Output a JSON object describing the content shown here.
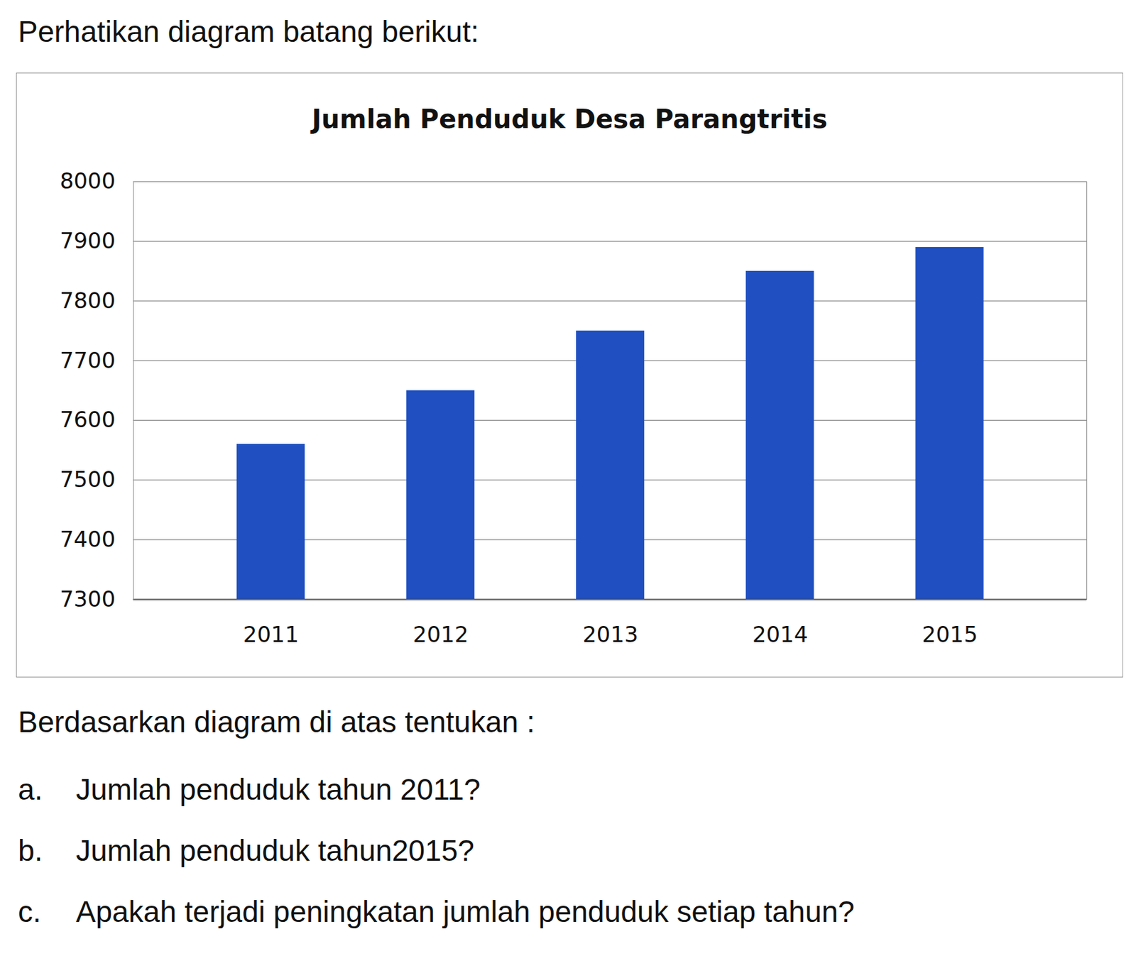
{
  "intro": "Perhatikan diagram batang berikut:",
  "chart_data": {
    "type": "bar",
    "title": "Jumlah Penduduk Desa Parangtritis",
    "categories": [
      "2011",
      "2012",
      "2013",
      "2014",
      "2015"
    ],
    "values": [
      7560,
      7650,
      7750,
      7850,
      7890
    ],
    "color": "#1f4fc0",
    "ylim": [
      7300,
      8000
    ],
    "yticks": [
      7300,
      7400,
      7500,
      7600,
      7700,
      7800,
      7900,
      8000
    ],
    "grid": true
  },
  "prompt": "Berdasarkan diagram di atas tentukan :",
  "questions": [
    {
      "label": "a.",
      "text": "Jumlah penduduk tahun 2011?"
    },
    {
      "label": "b.",
      "text": "Jumlah penduduk tahun2015?"
    },
    {
      "label": "c.",
      "text": "Apakah terjadi peningkatan jumlah penduduk setiap tahun?"
    }
  ]
}
